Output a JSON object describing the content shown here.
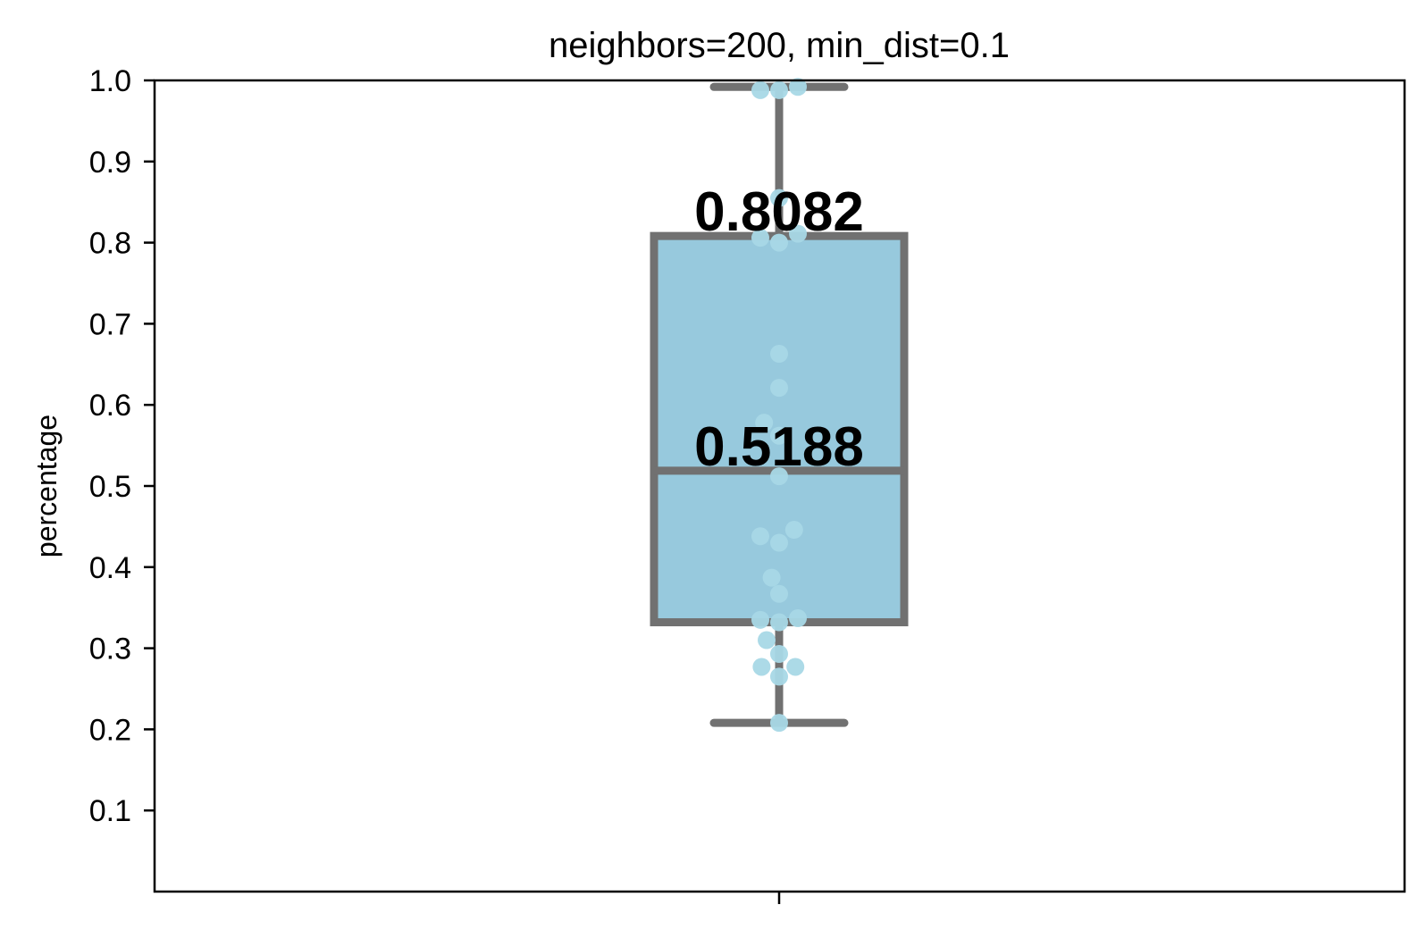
{
  "chart_data": {
    "type": "box",
    "title": "neighbors=200, min_dist=0.1",
    "xlabel": "",
    "ylabel": "percentage",
    "ylim": [
      0.0,
      1.0
    ],
    "yticks": [
      "0.1",
      "0.2",
      "0.3",
      "0.4",
      "0.5",
      "0.6",
      "0.7",
      "0.8",
      "0.9",
      "1.0"
    ],
    "xticks": [
      ""
    ],
    "box": {
      "whisker_low": 0.208,
      "q1": 0.332,
      "median": 0.5188,
      "q3": 0.8082,
      "whisker_high": 0.992
    },
    "annotations": [
      "0.8082",
      "0.5188"
    ],
    "points": [
      {
        "x": 0.0,
        "y": 0.988
      },
      {
        "x": -0.15,
        "y": 0.988
      },
      {
        "x": 0.15,
        "y": 0.992
      },
      {
        "x": 0.0,
        "y": 0.855
      },
      {
        "x": -0.15,
        "y": 0.806
      },
      {
        "x": 0.0,
        "y": 0.8
      },
      {
        "x": 0.15,
        "y": 0.811
      },
      {
        "x": 0.0,
        "y": 0.663
      },
      {
        "x": 0.0,
        "y": 0.621
      },
      {
        "x": -0.12,
        "y": 0.578
      },
      {
        "x": 0.0,
        "y": 0.562
      },
      {
        "x": 0.0,
        "y": 0.512
      },
      {
        "x": -0.15,
        "y": 0.438
      },
      {
        "x": 0.0,
        "y": 0.43
      },
      {
        "x": 0.12,
        "y": 0.446
      },
      {
        "x": -0.06,
        "y": 0.387
      },
      {
        "x": 0.0,
        "y": 0.367
      },
      {
        "x": -0.15,
        "y": 0.335
      },
      {
        "x": 0.0,
        "y": 0.332
      },
      {
        "x": 0.15,
        "y": 0.337
      },
      {
        "x": -0.1,
        "y": 0.31
      },
      {
        "x": 0.0,
        "y": 0.293
      },
      {
        "x": -0.14,
        "y": 0.277
      },
      {
        "x": 0.13,
        "y": 0.277
      },
      {
        "x": 0.0,
        "y": 0.265
      },
      {
        "x": 0.0,
        "y": 0.208
      }
    ],
    "grid": false,
    "colors": {
      "box_fill": "#97c9dd",
      "box_edge": "#717171",
      "point": "#a8d8e6",
      "axis": "#000000"
    }
  }
}
